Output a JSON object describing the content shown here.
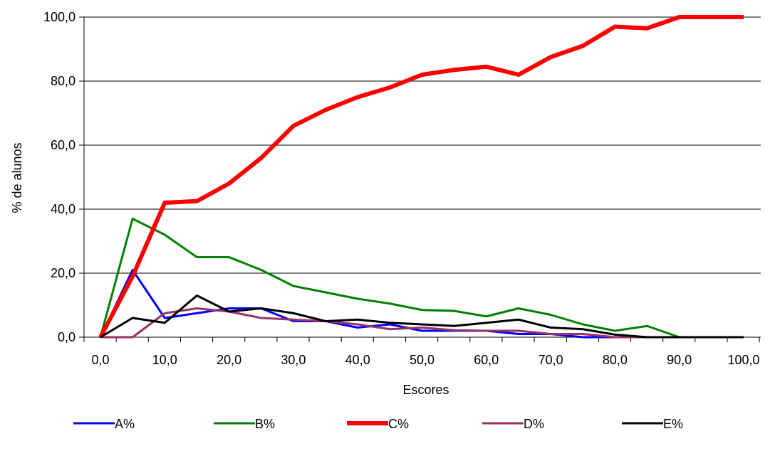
{
  "chart_data": {
    "type": "line",
    "title": "",
    "xlabel": "Escores",
    "ylabel": "% de alunos",
    "ylim": [
      0,
      100
    ],
    "y_ticks": [
      "0,0",
      "20,0",
      "40,0",
      "60,0",
      "80,0",
      "100,0"
    ],
    "x_ticks": [
      "0,0",
      "10,0",
      "20,0",
      "30,0",
      "40,0",
      "50,0",
      "60,0",
      "70,0",
      "80,0",
      "90,0",
      "100,0"
    ],
    "x_tick_values": [
      0,
      10,
      20,
      30,
      40,
      50,
      60,
      70,
      80,
      90,
      100
    ],
    "x": [
      0,
      5,
      10,
      15,
      20,
      25,
      30,
      35,
      40,
      45,
      50,
      55,
      60,
      65,
      70,
      75,
      80,
      85,
      90,
      95,
      100
    ],
    "grid": "horizontal",
    "legend_position": "bottom",
    "series": [
      {
        "name": "A%",
        "color": "#0000ff",
        "width": 3,
        "values": [
          0,
          21,
          6,
          7.5,
          9,
          9,
          5,
          5,
          3,
          4,
          2,
          2,
          2,
          1,
          1,
          0,
          0,
          0,
          0,
          0,
          0
        ]
      },
      {
        "name": "B%",
        "color": "#008000",
        "width": 3,
        "values": [
          0,
          37,
          32,
          25,
          25,
          21,
          16,
          14,
          12,
          10.5,
          8.5,
          8.2,
          6.5,
          9,
          7,
          4,
          2,
          3.5,
          0,
          0,
          0
        ]
      },
      {
        "name": "C%",
        "color": "#ff0000",
        "width": 6,
        "values": [
          0,
          19,
          42,
          42.5,
          48,
          56,
          66,
          71,
          75,
          78,
          82,
          83.5,
          84.5,
          82,
          87.5,
          91,
          97,
          96.5,
          100,
          100,
          100
        ]
      },
      {
        "name": "D%",
        "color": "#993366",
        "width": 3,
        "values": [
          0,
          0,
          7.5,
          9,
          8,
          6,
          5.5,
          5,
          4,
          2.5,
          3,
          2.2,
          2,
          2,
          1,
          1,
          0,
          0,
          0,
          0,
          0
        ]
      },
      {
        "name": "E%",
        "color": "#000000",
        "width": 3,
        "values": [
          0,
          6,
          4.5,
          13,
          8,
          9,
          7.5,
          5,
          5.5,
          4.5,
          4,
          3.5,
          4.5,
          5.5,
          3,
          2.5,
          0.8,
          0,
          0,
          0,
          0
        ]
      }
    ]
  }
}
